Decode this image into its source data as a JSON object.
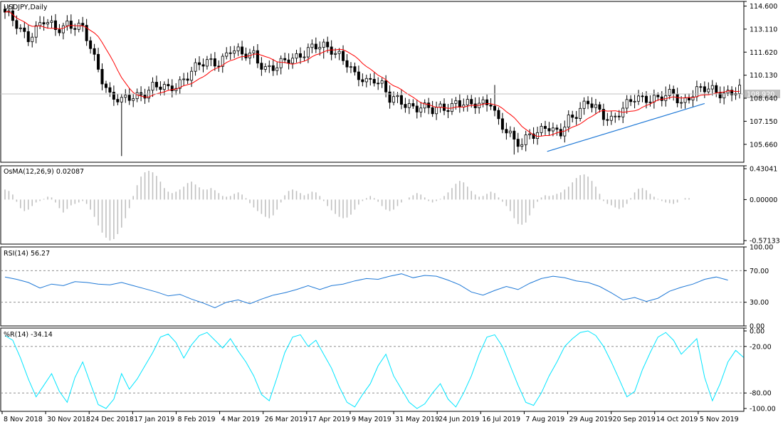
{
  "chart_data": {
    "type": "candlestick",
    "symbol_label": "USDJPY,Daily",
    "x_labels": [
      "8 Nov 2018",
      "30 Nov 2018",
      "24 Dec 2018",
      "17 Jan 2019",
      "8 Feb 2019",
      "4 Mar 2019",
      "26 Mar 2019",
      "17 Apr 2019",
      "9 May 2019",
      "31 May 2019",
      "24 Jun 2019",
      "16 Jul 2019",
      "7 Aug 2019",
      "29 Aug 2019",
      "20 Sep 2019",
      "14 Oct 2019",
      "5 Nov 2019"
    ],
    "price_panel": {
      "ticks": [
        "114.600",
        "113.110",
        "111.620",
        "110.130",
        "108.640",
        "107.150",
        "105.660"
      ],
      "ylim": [
        104.5,
        114.9
      ],
      "current_price": 108.92,
      "current_price_label": "108.920",
      "close_path": [
        [
          0,
          114.0
        ],
        [
          3,
          113.4
        ],
        [
          6,
          112.7
        ],
        [
          10,
          113.5
        ],
        [
          13,
          113.1
        ],
        [
          16,
          113.6
        ],
        [
          20,
          113.0
        ],
        [
          23,
          111.2
        ],
        [
          27,
          108.9
        ],
        [
          30,
          108.3
        ],
        [
          32,
          108.6
        ],
        [
          35,
          109.0
        ],
        [
          38,
          109.4
        ],
        [
          42,
          109.1
        ],
        [
          45,
          109.8
        ],
        [
          48,
          110.4
        ],
        [
          52,
          110.9
        ],
        [
          55,
          111.1
        ],
        [
          58,
          111.8
        ],
        [
          61,
          111.3
        ],
        [
          64,
          111.6
        ],
        [
          67,
          110.6
        ],
        [
          70,
          110.5
        ],
        [
          73,
          111.2
        ],
        [
          76,
          111.6
        ],
        [
          79,
          111.8
        ],
        [
          82,
          111.9
        ],
        [
          84,
          111.9
        ],
        [
          86,
          111.6
        ],
        [
          88,
          110.9
        ],
        [
          90,
          109.9
        ],
        [
          93,
          109.7
        ],
        [
          95,
          110.1
        ],
        [
          97,
          109.6
        ],
        [
          99,
          108.5
        ],
        [
          102,
          108.3
        ],
        [
          105,
          108.2
        ],
        [
          107,
          108.2
        ],
        [
          110,
          107.7
        ],
        [
          113,
          108.0
        ],
        [
          116,
          108.5
        ],
        [
          118,
          108.3
        ],
        [
          120,
          108.0
        ],
        [
          123,
          108.3
        ],
        [
          125,
          108.6
        ],
        [
          127,
          107.2
        ],
        [
          129,
          106.4
        ],
        [
          131,
          105.7
        ],
        [
          133,
          105.7
        ],
        [
          135,
          106.6
        ],
        [
          137,
          106.4
        ],
        [
          139,
          106.7
        ],
        [
          141,
          106.3
        ],
        [
          143,
          106.5
        ],
        [
          145,
          107.5
        ],
        [
          147,
          107.7
        ],
        [
          150,
          108.2
        ],
        [
          153,
          107.8
        ],
        [
          156,
          107.4
        ],
        [
          159,
          107.8
        ],
        [
          162,
          108.6
        ],
        [
          165,
          108.8
        ],
        [
          168,
          108.6
        ],
        [
          170,
          108.6
        ],
        [
          172,
          108.9
        ],
        [
          174,
          108.4
        ],
        [
          176,
          108.9
        ],
        [
          178,
          109.1
        ]
      ],
      "events": [
        {
          "i": 30,
          "low": 104.9,
          "high": 108.7
        },
        {
          "i": 131,
          "low": 105.0,
          "high": 106.4
        },
        {
          "i": 126,
          "low": 107.5,
          "high": 109.5
        },
        {
          "i": 170,
          "low": 108.2,
          "high": 109.4
        },
        {
          "i": 82,
          "low": 111.2,
          "high": 112.3
        }
      ],
      "trendline": [
        [
          139.5,
          105.2
        ],
        [
          180,
          108.3
        ]
      ],
      "colors": {
        "candle": "#000000",
        "moving_average": "#ff0000",
        "trendline": "#1e78d6",
        "price_line": "#c0c0c0",
        "price_label_bg": "#c0c0c0"
      }
    },
    "osma_panel": {
      "title": "OsMA(12,26,9) 0.02087",
      "ticks": [
        "0.43041",
        "0.00000",
        "-0.57133"
      ],
      "ylim": [
        -0.62,
        0.47
      ],
      "values": [
        0.14,
        0.12,
        0.07,
        -0.03,
        -0.12,
        -0.16,
        -0.14,
        -0.09,
        -0.04,
        -0.02,
        0.01,
        0.04,
        0.03,
        -0.04,
        -0.12,
        -0.18,
        -0.13,
        -0.08,
        -0.06,
        -0.04,
        -0.02,
        -0.06,
        -0.14,
        -0.24,
        -0.36,
        -0.46,
        -0.53,
        -0.57,
        -0.55,
        -0.48,
        -0.39,
        -0.26,
        -0.12,
        0.05,
        0.2,
        0.32,
        0.38,
        0.4,
        0.38,
        0.33,
        0.25,
        0.16,
        0.11,
        0.09,
        0.11,
        0.14,
        0.18,
        0.23,
        0.25,
        0.21,
        0.17,
        0.14,
        0.14,
        0.16,
        0.13,
        0.09,
        0.05,
        0.04,
        0.05,
        0.08,
        0.1,
        0.07,
        0.02,
        -0.05,
        -0.11,
        -0.16,
        -0.2,
        -0.24,
        -0.26,
        -0.22,
        -0.14,
        -0.04,
        0.06,
        0.12,
        0.14,
        0.12,
        0.09,
        0.06,
        0.08,
        0.11,
        0.1,
        0.05,
        -0.02,
        -0.09,
        -0.15,
        -0.2,
        -0.24,
        -0.26,
        -0.25,
        -0.21,
        -0.14,
        -0.07,
        -0.02,
        0.02,
        0.05,
        0.02,
        -0.03,
        -0.09,
        -0.14,
        -0.16,
        -0.14,
        -0.09,
        -0.04,
        0.0,
        0.03,
        0.06,
        0.09,
        0.07,
        0.03,
        -0.02,
        -0.04,
        -0.02,
        0.01,
        0.05,
        0.1,
        0.16,
        0.22,
        0.26,
        0.24,
        0.18,
        0.12,
        0.07,
        0.04,
        0.05,
        0.08,
        0.11,
        0.09,
        0.03,
        -0.03,
        -0.09,
        -0.16,
        -0.26,
        -0.34,
        -0.35,
        -0.32,
        -0.22,
        -0.12,
        -0.03,
        0.03,
        0.06,
        0.05,
        0.06,
        0.08,
        0.1,
        0.14,
        0.18,
        0.24,
        0.3,
        0.34,
        0.35,
        0.32,
        0.26,
        0.18,
        0.08,
        -0.02,
        -0.06,
        -0.08,
        -0.11,
        -0.13,
        -0.11,
        -0.06,
        0.02,
        0.1,
        0.15,
        0.16,
        0.13,
        0.08,
        0.04,
        0.01,
        -0.02,
        -0.04,
        -0.05,
        -0.06,
        -0.04,
        0.0,
        0.02,
        0.02
      ],
      "colors": {
        "histogram": "#c0c0c0"
      }
    },
    "rsi_panel": {
      "title": "RSI(14) 56.27",
      "ticks": [
        "100.00",
        "70.00",
        "30.00",
        "0.00"
      ],
      "ylim": [
        0,
        100
      ],
      "levels": [
        70,
        30
      ],
      "values": [
        [
          0,
          62
        ],
        [
          3,
          59
        ],
        [
          6,
          55
        ],
        [
          9,
          48
        ],
        [
          12,
          53
        ],
        [
          15,
          51
        ],
        [
          18,
          56
        ],
        [
          21,
          55
        ],
        [
          24,
          53
        ],
        [
          27,
          52
        ],
        [
          30,
          55
        ],
        [
          33,
          51
        ],
        [
          36,
          47
        ],
        [
          39,
          43
        ],
        [
          42,
          38
        ],
        [
          45,
          40
        ],
        [
          48,
          34
        ],
        [
          51,
          29
        ],
        [
          54,
          23
        ],
        [
          57,
          30
        ],
        [
          60,
          33
        ],
        [
          63,
          28
        ],
        [
          66,
          34
        ],
        [
          69,
          39
        ],
        [
          72,
          42
        ],
        [
          75,
          46
        ],
        [
          78,
          51
        ],
        [
          81,
          46
        ],
        [
          84,
          51
        ],
        [
          87,
          53
        ],
        [
          90,
          57
        ],
        [
          93,
          60
        ],
        [
          96,
          59
        ],
        [
          99,
          63
        ],
        [
          102,
          66
        ],
        [
          105,
          61
        ],
        [
          108,
          64
        ],
        [
          111,
          63
        ],
        [
          114,
          58
        ],
        [
          117,
          52
        ],
        [
          120,
          43
        ],
        [
          123,
          39
        ],
        [
          126,
          45
        ],
        [
          129,
          50
        ],
        [
          132,
          46
        ],
        [
          135,
          54
        ],
        [
          138,
          60
        ],
        [
          141,
          63
        ],
        [
          144,
          61
        ],
        [
          147,
          57
        ],
        [
          150,
          55
        ],
        [
          153,
          50
        ],
        [
          156,
          42
        ],
        [
          159,
          33
        ],
        [
          162,
          36
        ],
        [
          165,
          31
        ],
        [
          168,
          35
        ],
        [
          171,
          44
        ],
        [
          174,
          49
        ],
        [
          177,
          53
        ],
        [
          180,
          59
        ],
        [
          183,
          62
        ],
        [
          186,
          58
        ]
      ],
      "colors": {
        "line": "#1e78d6",
        "levels": "#808080"
      }
    },
    "wpr_panel": {
      "title": "%R(14) -34.14",
      "ticks": [
        "0.00",
        "-20.00",
        "-80.00",
        "-100.00"
      ],
      "ylim": [
        -100,
        0
      ],
      "levels": [
        -20,
        -80
      ],
      "values": [
        [
          0,
          -6
        ],
        [
          2,
          -12
        ],
        [
          4,
          -35
        ],
        [
          6,
          -62
        ],
        [
          8,
          -85
        ],
        [
          10,
          -70
        ],
        [
          12,
          -55
        ],
        [
          14,
          -78
        ],
        [
          16,
          -92
        ],
        [
          18,
          -60
        ],
        [
          20,
          -40
        ],
        [
          22,
          -68
        ],
        [
          24,
          -95
        ],
        [
          26,
          -100
        ],
        [
          28,
          -88
        ],
        [
          30,
          -55
        ],
        [
          32,
          -75
        ],
        [
          34,
          -62
        ],
        [
          36,
          -45
        ],
        [
          38,
          -28
        ],
        [
          40,
          -8
        ],
        [
          42,
          -4
        ],
        [
          44,
          -15
        ],
        [
          46,
          -35
        ],
        [
          48,
          -18
        ],
        [
          50,
          -6
        ],
        [
          52,
          -2
        ],
        [
          54,
          -12
        ],
        [
          56,
          -22
        ],
        [
          58,
          -10
        ],
        [
          60,
          -26
        ],
        [
          62,
          -40
        ],
        [
          64,
          -58
        ],
        [
          66,
          -82
        ],
        [
          68,
          -90
        ],
        [
          70,
          -60
        ],
        [
          72,
          -28
        ],
        [
          74,
          -8
        ],
        [
          76,
          -5
        ],
        [
          78,
          -20
        ],
        [
          80,
          -12
        ],
        [
          82,
          -30
        ],
        [
          84,
          -48
        ],
        [
          86,
          -72
        ],
        [
          88,
          -92
        ],
        [
          90,
          -98
        ],
        [
          92,
          -82
        ],
        [
          94,
          -68
        ],
        [
          96,
          -45
        ],
        [
          98,
          -30
        ],
        [
          100,
          -58
        ],
        [
          102,
          -75
        ],
        [
          104,
          -92
        ],
        [
          106,
          -100
        ],
        [
          108,
          -94
        ],
        [
          110,
          -80
        ],
        [
          112,
          -68
        ],
        [
          114,
          -88
        ],
        [
          116,
          -98
        ],
        [
          118,
          -80
        ],
        [
          120,
          -58
        ],
        [
          122,
          -30
        ],
        [
          124,
          -8
        ],
        [
          126,
          -5
        ],
        [
          128,
          -20
        ],
        [
          130,
          -45
        ],
        [
          132,
          -70
        ],
        [
          134,
          -92
        ],
        [
          136,
          -96
        ],
        [
          138,
          -80
        ],
        [
          140,
          -58
        ],
        [
          142,
          -40
        ],
        [
          144,
          -20
        ],
        [
          146,
          -10
        ],
        [
          148,
          -2
        ],
        [
          150,
          0
        ],
        [
          152,
          -6
        ],
        [
          154,
          -20
        ],
        [
          156,
          -40
        ],
        [
          158,
          -62
        ],
        [
          160,
          -85
        ],
        [
          162,
          -78
        ],
        [
          164,
          -50
        ],
        [
          166,
          -28
        ],
        [
          168,
          -8
        ],
        [
          170,
          -2
        ],
        [
          172,
          -12
        ],
        [
          174,
          -30
        ],
        [
          176,
          -20
        ],
        [
          178,
          -10
        ],
        [
          180,
          -60
        ],
        [
          182,
          -90
        ],
        [
          184,
          -68
        ],
        [
          186,
          -40
        ],
        [
          188,
          -25
        ],
        [
          190,
          -34
        ]
      ],
      "colors": {
        "line": "#00e5ff",
        "levels": "#808080"
      }
    }
  }
}
